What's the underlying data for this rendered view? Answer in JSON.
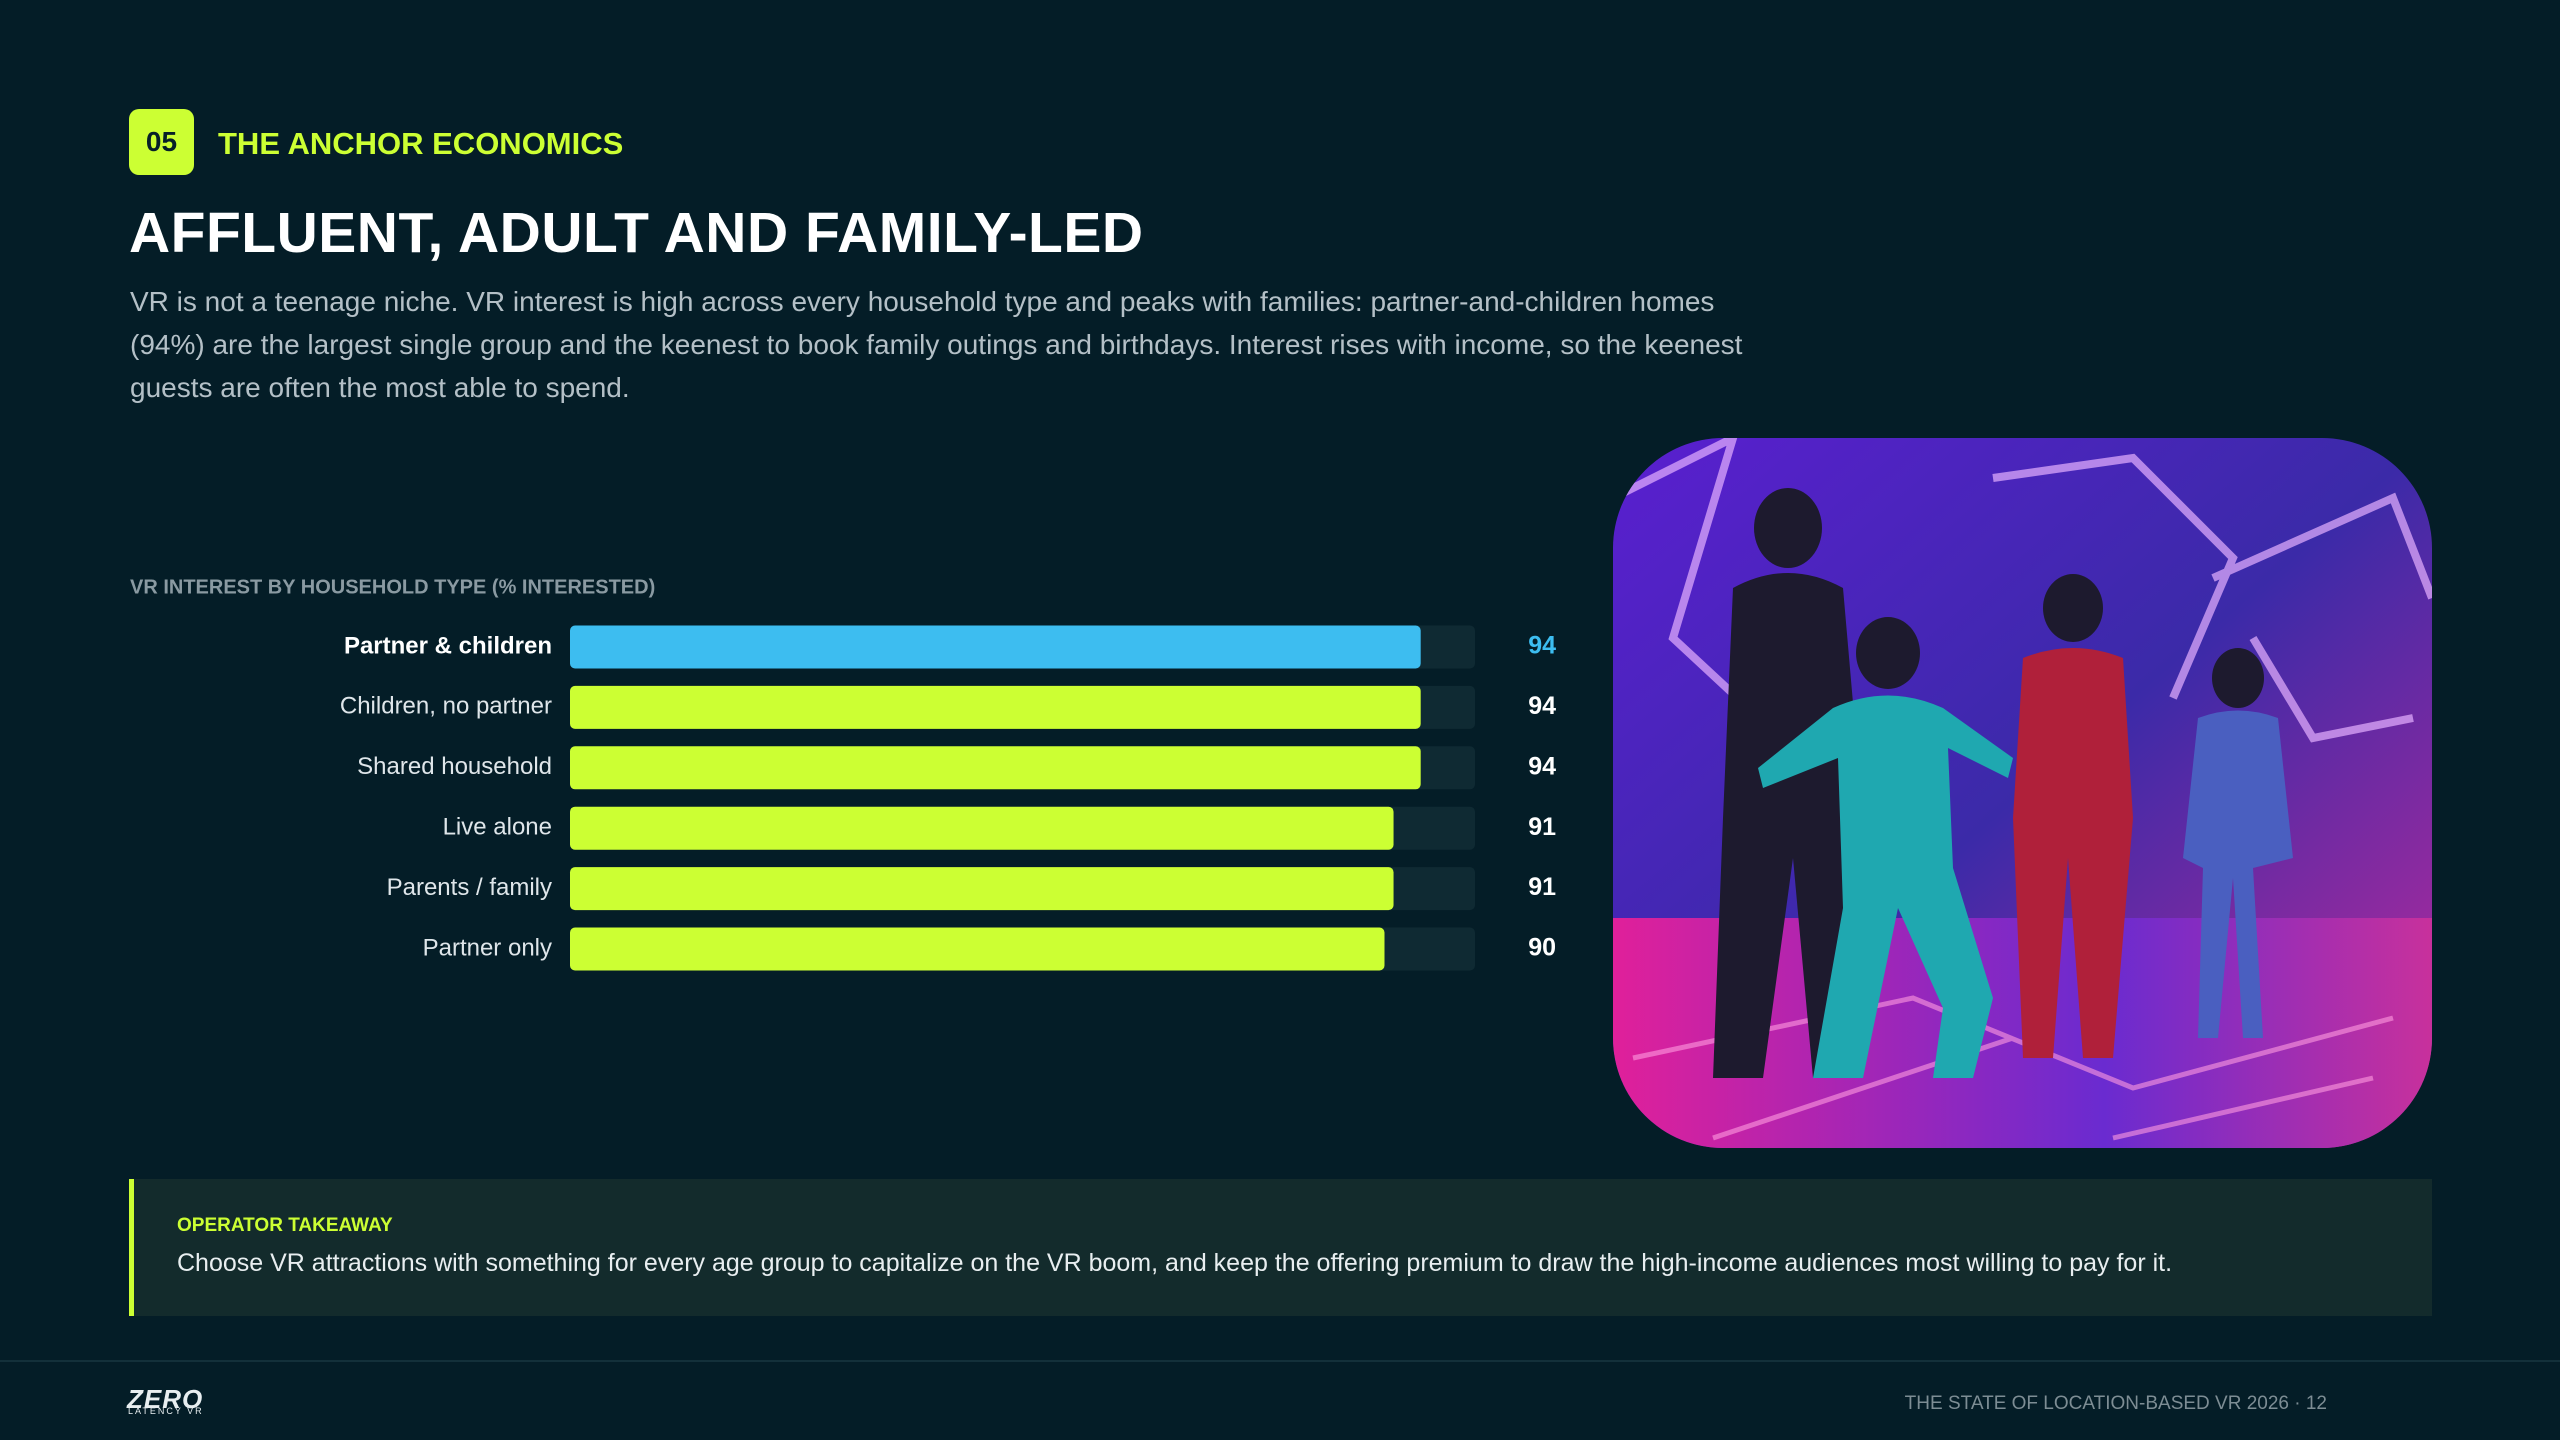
{
  "section": {
    "number": "05",
    "label": "THE ANCHOR ECONOMICS"
  },
  "title": "AFFLUENT, ADULT AND FAMILY-LED",
  "intro": "VR is not a teenage niche. VR interest is high across every household type and peaks with families: partner-and-children homes (94%) are the largest single group and the keenest to book family outings and birthdays. Interest rises with income, so the keenest guests are often the most able to spend.",
  "chart_data": {
    "type": "bar",
    "orientation": "horizontal",
    "title": "VR INTEREST BY HOUSEHOLD TYPE (% INTERESTED)",
    "categories": [
      "Partner & children",
      "Children, no partner",
      "Shared household",
      "Live alone",
      "Parents / family",
      "Partner only"
    ],
    "values": [
      94,
      94,
      94,
      91,
      91,
      90
    ],
    "color": "#ccff33",
    "highlight_index": 0,
    "highlight_color": "#3dbdf0",
    "xlim": [
      0,
      100
    ]
  },
  "takeaway": {
    "label": "OPERATOR TAKEAWAY",
    "text": "Choose VR attractions with something for every age group to capitalize on the VR boom, and keep the offering premium to draw the high-income audiences most willing to pay for it."
  },
  "footer": {
    "logo": "ZERO",
    "logo_sub": "LATENCY VR",
    "text": "THE STATE OF LOCATION-BASED VR 2026 · 12"
  }
}
